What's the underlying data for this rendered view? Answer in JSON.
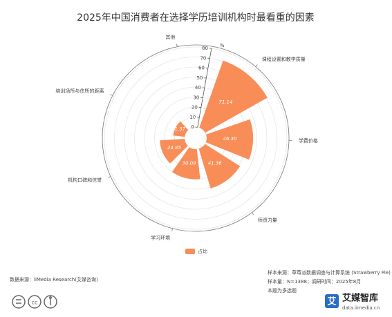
{
  "chart_data": {
    "type": "polar-bar",
    "title": "2025年中国消费者在选择学历培训机构时最看重的因素",
    "categories": [
      "课程设置和教学质量",
      "学费价格",
      "师资力量",
      "学习环境",
      "机构口碑和信誉",
      "培训场所与住所的距离",
      "其他"
    ],
    "series": [
      {
        "name": "占比",
        "color": "#f98d57",
        "values": [
          71.14,
          46.3,
          41.36,
          30.09,
          24.85,
          11.57,
          0.15
        ],
        "value_labels": [
          "71.14",
          "46.30",
          "41.36",
          "30.09",
          "24.85",
          "11.57",
          "0.15"
        ]
      }
    ],
    "radial_unit": "%",
    "ylim": [
      0,
      80
    ],
    "yticks": [
      0,
      10,
      20,
      30,
      40,
      50,
      60,
      70,
      80
    ],
    "grid": true,
    "source": "数据来源：iiMedia Research(艾媒咨询)",
    "notes": [
      "样本来源：草莓派数据调查与计算系统 (Strawberry Pie)",
      "样本量：N=1388；调研时间：2025年8月",
      "本题为多选题"
    ],
    "brand": "艾媒智库",
    "brand_url": "data.iimedia.cn"
  }
}
